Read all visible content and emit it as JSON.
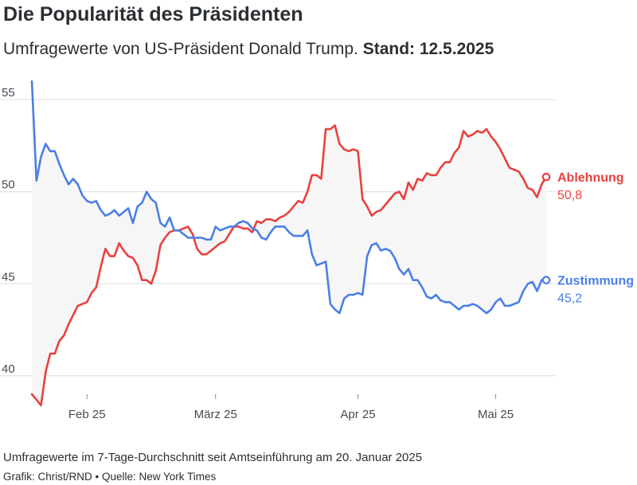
{
  "header": {
    "title": "Die Popularität des Präsidenten",
    "subtitle_main": "Umfragewerte von US-Präsident Donald Trump.",
    "subtitle_bold": "Stand: 12.5.2025"
  },
  "footer": {
    "note": "Umfragewerte im 7-Tage-Durchschnitt seit Amtseinführung am 20. Januar 2025",
    "credit": "Grafik: Christ/RND • Quelle: New York Times"
  },
  "colors": {
    "disapprove": "#e8413e",
    "approve": "#4a7fe5",
    "band": "#f6f6f6",
    "grid": "#dddddd"
  },
  "chart_data": {
    "type": "line",
    "x_unit": "date",
    "x": [
      "2025-01-20",
      "2025-01-21",
      "2025-01-22",
      "2025-01-23",
      "2025-01-24",
      "2025-01-25",
      "2025-01-26",
      "2025-01-27",
      "2025-01-28",
      "2025-01-29",
      "2025-01-30",
      "2025-01-31",
      "2025-02-01",
      "2025-02-02",
      "2025-02-03",
      "2025-02-04",
      "2025-02-05",
      "2025-02-06",
      "2025-02-07",
      "2025-02-08",
      "2025-02-09",
      "2025-02-10",
      "2025-02-11",
      "2025-02-12",
      "2025-02-13",
      "2025-02-14",
      "2025-02-15",
      "2025-02-16",
      "2025-02-17",
      "2025-02-18",
      "2025-02-19",
      "2025-02-20",
      "2025-02-21",
      "2025-02-22",
      "2025-02-23",
      "2025-02-24",
      "2025-02-25",
      "2025-02-26",
      "2025-02-27",
      "2025-02-28",
      "2025-03-01",
      "2025-03-02",
      "2025-03-03",
      "2025-03-04",
      "2025-03-05",
      "2025-03-06",
      "2025-03-07",
      "2025-03-08",
      "2025-03-09",
      "2025-03-10",
      "2025-03-11",
      "2025-03-12",
      "2025-03-13",
      "2025-03-14",
      "2025-03-15",
      "2025-03-16",
      "2025-03-17",
      "2025-03-18",
      "2025-03-19",
      "2025-03-20",
      "2025-03-21",
      "2025-03-22",
      "2025-03-23",
      "2025-03-24",
      "2025-03-25",
      "2025-03-26",
      "2025-03-27",
      "2025-03-28",
      "2025-03-29",
      "2025-03-30",
      "2025-03-31",
      "2025-04-01",
      "2025-04-02",
      "2025-04-03",
      "2025-04-04",
      "2025-04-05",
      "2025-04-06",
      "2025-04-07",
      "2025-04-08",
      "2025-04-09",
      "2025-04-10",
      "2025-04-11",
      "2025-04-12",
      "2025-04-13",
      "2025-04-14",
      "2025-04-15",
      "2025-04-16",
      "2025-04-17",
      "2025-04-18",
      "2025-04-19",
      "2025-04-20",
      "2025-04-21",
      "2025-04-22",
      "2025-04-23",
      "2025-04-24",
      "2025-04-25",
      "2025-04-26",
      "2025-04-27",
      "2025-04-28",
      "2025-04-29",
      "2025-04-30",
      "2025-05-01",
      "2025-05-02",
      "2025-05-03",
      "2025-05-04",
      "2025-05-05",
      "2025-05-06",
      "2025-05-07",
      "2025-05-08",
      "2025-05-09",
      "2025-05-10",
      "2025-05-11",
      "2025-05-12"
    ],
    "series": [
      {
        "name": "Ablehnung",
        "color": "#e8413e",
        "values": [
          39.0,
          38.7,
          38.4,
          40.2,
          41.2,
          41.2,
          41.9,
          42.2,
          42.8,
          43.3,
          43.8,
          43.9,
          44.0,
          44.5,
          44.8,
          45.9,
          46.9,
          46.5,
          46.5,
          47.2,
          46.8,
          46.5,
          46.4,
          46.0,
          45.2,
          45.2,
          45.0,
          45.7,
          47.1,
          47.5,
          47.8,
          47.9,
          47.9,
          48.0,
          48.1,
          47.7,
          46.9,
          46.6,
          46.6,
          46.8,
          47.0,
          47.2,
          47.3,
          47.7,
          48.1,
          48.1,
          48.0,
          48.0,
          47.8,
          48.4,
          48.3,
          48.5,
          48.5,
          48.4,
          48.6,
          48.7,
          48.9,
          49.2,
          49.5,
          49.4,
          50.0,
          50.9,
          50.9,
          50.7,
          53.4,
          53.4,
          53.6,
          52.6,
          52.3,
          52.2,
          52.3,
          52.2,
          49.6,
          49.2,
          48.7,
          48.9,
          49.0,
          49.3,
          49.6,
          49.9,
          50.0,
          49.6,
          50.5,
          50.1,
          50.7,
          50.6,
          51.0,
          50.9,
          50.9,
          51.3,
          51.6,
          51.6,
          52.1,
          52.4,
          53.3,
          53.0,
          53.1,
          53.3,
          53.2,
          53.4,
          53.0,
          52.7,
          52.3,
          51.8,
          51.3,
          51.2,
          51.1,
          50.7,
          50.2,
          50.1,
          49.7,
          50.4,
          50.8
        ],
        "end_label": "50,8"
      },
      {
        "name": "Zustimmung",
        "color": "#4a7fe5",
        "values": [
          56.0,
          50.6,
          51.9,
          52.6,
          52.2,
          52.2,
          51.5,
          50.9,
          50.4,
          50.7,
          50.4,
          49.8,
          49.5,
          49.4,
          49.5,
          49.0,
          48.7,
          48.8,
          49.0,
          48.7,
          48.9,
          49.1,
          48.3,
          49.2,
          49.4,
          50.0,
          49.6,
          49.4,
          48.3,
          48.1,
          48.6,
          47.9,
          47.9,
          47.7,
          47.5,
          47.5,
          47.5,
          47.5,
          47.4,
          47.4,
          48.1,
          47.9,
          48.0,
          48.1,
          48.1,
          48.3,
          48.4,
          48.3,
          48.0,
          47.9,
          47.5,
          47.4,
          47.8,
          48.1,
          48.1,
          48.1,
          47.8,
          47.6,
          47.6,
          47.6,
          47.9,
          46.6,
          46.0,
          46.1,
          46.2,
          43.9,
          43.6,
          43.4,
          44.2,
          44.4,
          44.4,
          44.5,
          44.4,
          46.5,
          47.1,
          47.2,
          46.8,
          46.9,
          46.8,
          46.4,
          45.8,
          45.5,
          45.8,
          45.2,
          45.2,
          44.8,
          44.3,
          44.2,
          44.4,
          44.1,
          44.0,
          44.0,
          43.8,
          43.6,
          43.8,
          43.8,
          43.9,
          43.8,
          43.6,
          43.4,
          43.6,
          44.0,
          44.2,
          43.8,
          43.8,
          43.9,
          44.0,
          44.6,
          45.0,
          45.1,
          44.6,
          45.2,
          45.2
        ],
        "end_label": "45,2"
      }
    ],
    "ylim": [
      39,
      56
    ],
    "y_ticks": [
      "40",
      "45",
      "50",
      "55"
    ],
    "x_ticks": [
      {
        "date": "2025-02-01",
        "label": "Feb 25"
      },
      {
        "date": "2025-03-01",
        "label": "März 25"
      },
      {
        "date": "2025-04-01",
        "label": "Apr 25"
      },
      {
        "date": "2025-05-01",
        "label": "Mai 25"
      }
    ],
    "grid": true,
    "legend": "end-of-line labels, right",
    "band_between_series": true
  }
}
